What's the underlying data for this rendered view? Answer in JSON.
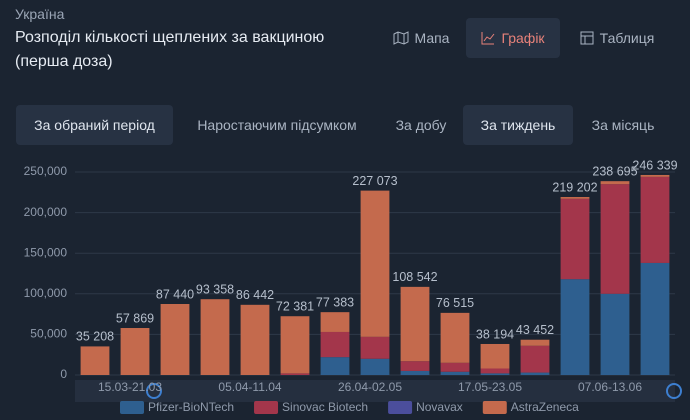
{
  "header": {
    "region": "Україна",
    "title": "Розподіл кількості щеплених за вакциною (перша доза)"
  },
  "tabs": [
    "Мапа",
    "Графік",
    "Таблиця"
  ],
  "period_buttons": [
    "За обраний період",
    "Наростаючим підсумком"
  ],
  "interval_buttons": [
    "За добу",
    "За тиждень",
    "За місяць"
  ],
  "chart_data": {
    "type": "stacked-bar",
    "categories": [
      null,
      "15.03-21.03",
      null,
      null,
      "05.04-11.04",
      null,
      null,
      "26.04-02.05",
      null,
      null,
      "17.05-23.05",
      null,
      null,
      "07.06-13.06",
      null
    ],
    "series": [
      {
        "name": "Pfizer-BioNTech",
        "color": "#2e5f8f",
        "values": [
          0,
          0,
          0,
          0,
          0,
          0,
          22000,
          20000,
          5000,
          4000,
          2000,
          3000,
          118000,
          100000,
          138000
        ]
      },
      {
        "name": "Sinovac Biotech",
        "color": "#a3364b",
        "values": [
          0,
          0,
          0,
          0,
          0,
          2000,
          31000,
          27000,
          12000,
          11000,
          6000,
          33000,
          99000,
          135000,
          106000
        ]
      },
      {
        "name": "Novavax",
        "color": "#4b4e9c",
        "values": [
          0,
          0,
          0,
          0,
          0,
          0,
          0,
          0,
          0,
          0,
          0,
          0,
          0,
          0,
          0
        ]
      },
      {
        "name": "AstraZeneca",
        "color": "#c46a4d",
        "values": [
          35208,
          57869,
          87440,
          93358,
          86442,
          70381,
          24383,
          180073,
          91542,
          61515,
          30194,
          7452,
          2202,
          3695,
          2339
        ]
      }
    ],
    "totals": [
      35208,
      57869,
      87440,
      93358,
      86442,
      72381,
      77383,
      227073,
      108542,
      76515,
      38194,
      43452,
      219202,
      238695,
      246339
    ],
    "total_labels": [
      "35 208",
      "57 869",
      "87 440",
      "93 358",
      "86 442",
      "72 381",
      "77 383",
      "227 073",
      "108 542",
      "76 515",
      "38 194",
      "43 452",
      "219 202",
      "238 695",
      "246 339"
    ],
    "ylim": [
      0,
      250000
    ],
    "yticks": [
      0,
      {
        "value": 50000,
        "label": "50,000"
      },
      {
        "value": 100000,
        "label": "100,000"
      },
      {
        "value": 150000,
        "label": "150,000"
      },
      {
        "value": 200000,
        "label": "200,000"
      },
      {
        "value": 250000,
        "label": "250,000"
      }
    ],
    "grid": true,
    "legend": "bottom"
  }
}
